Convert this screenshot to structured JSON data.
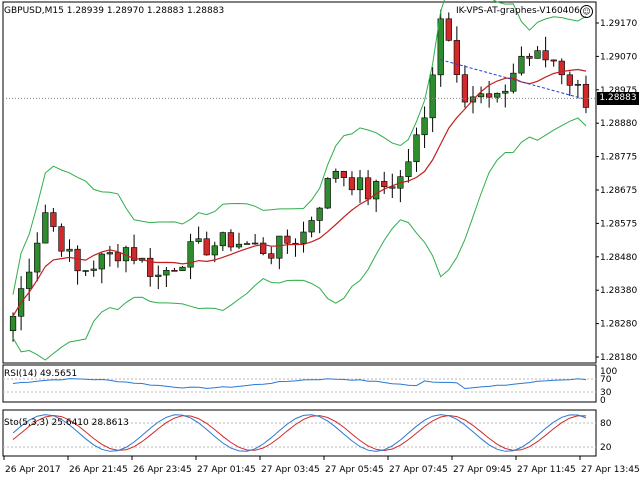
{
  "window": {
    "symbol_header": "GBPUSD,M15  1.28939 1.28970 1.28883 1.28883",
    "indicator_name": "IK-VPS-AT-graphes-V160406",
    "smiley_icon": "☺",
    "current_price": "1.28883"
  },
  "rsi_panel": {
    "label": "RSI(14) 49.5651",
    "levels": [
      "100",
      "70",
      "30",
      "0"
    ]
  },
  "sto_panel": {
    "label": "Sto(5,3,3) 25.6410 28.8613",
    "levels": [
      "80",
      "20"
    ]
  },
  "chart_data": {
    "type": "candlestick",
    "ylim": [
      1.2815,
      1.2915
    ],
    "y_ticks": [
      "1.29170",
      "1.29070",
      "1.28975",
      "1.28880",
      "1.28775",
      "1.28675",
      "1.28575",
      "1.28480",
      "1.28380",
      "1.28280",
      "1.28180"
    ],
    "x_ticks": [
      "26 Apr 2017",
      "26 Apr 21:45",
      "26 Apr 23:45",
      "27 Apr 01:45",
      "27 Apr 03:45",
      "27 Apr 05:45",
      "27 Apr 07:45",
      "27 Apr 09:45",
      "27 Apr 11:45",
      "27 Apr 13:45"
    ],
    "colors": {
      "bull": "#2e8b2e",
      "bear": "#d12a2a",
      "bollinger": "#2fae4a",
      "ma": "#c42020",
      "rsi": "#2a78d4",
      "sto_main": "#2a78d4",
      "sto_signal": "#d12a2a",
      "grid": "#d8d8d8"
    }
  }
}
